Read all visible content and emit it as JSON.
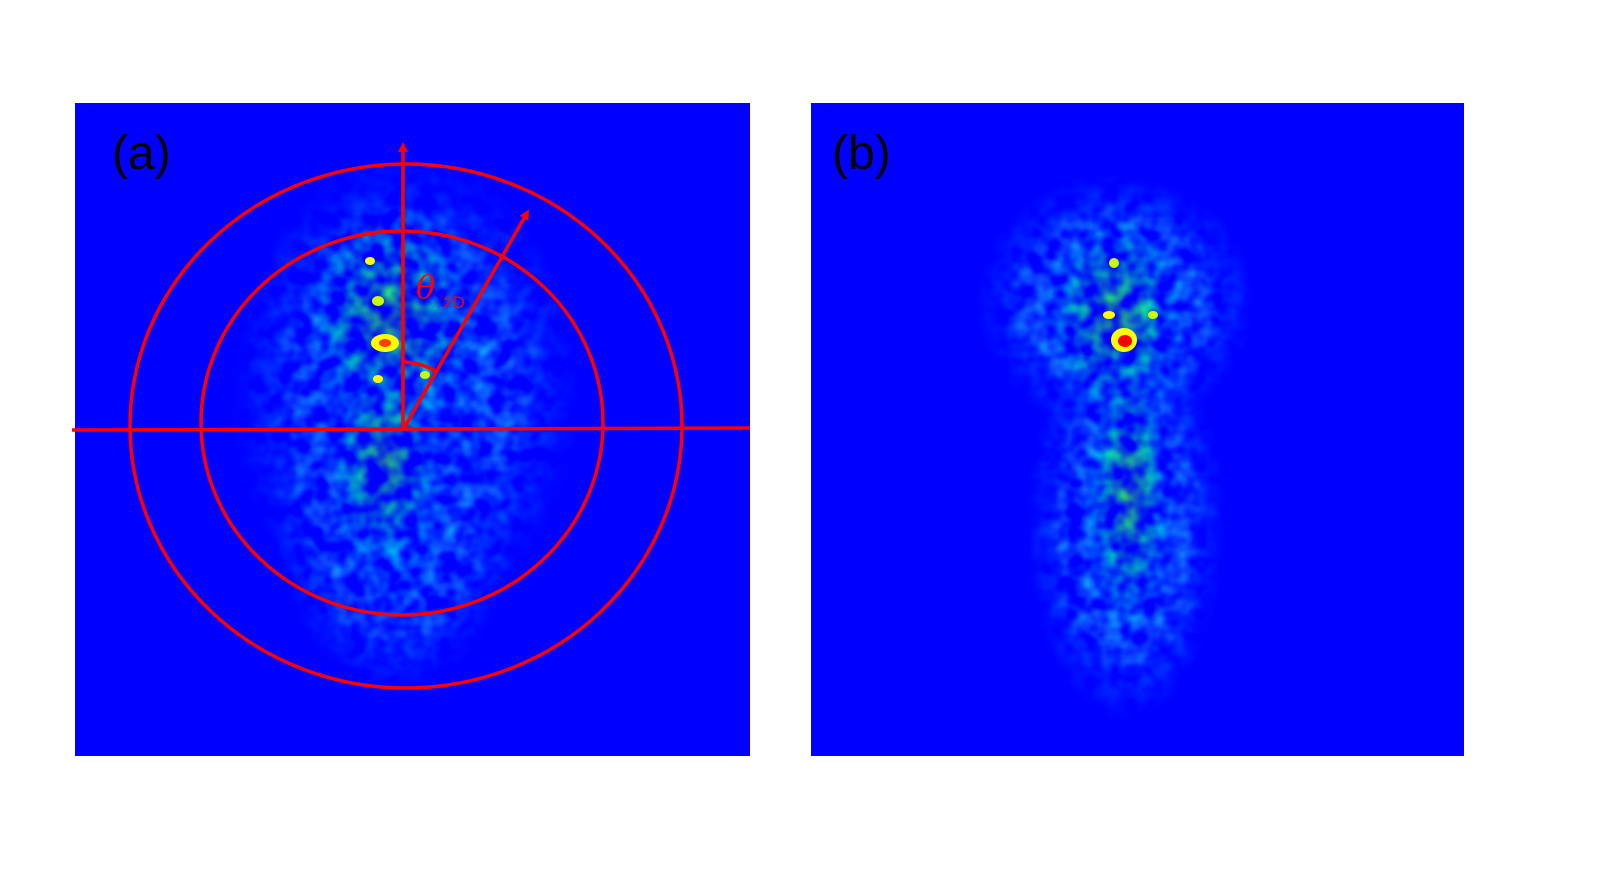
{
  "panels": [
    {
      "label": "(a)",
      "colormap": [
        "#0000ff",
        "#0080ff",
        "#00d8ff",
        "#00ff90",
        "#40ff00",
        "#ffff00",
        "#ff8000",
        "#ff0000"
      ]
    },
    {
      "label": "(b)",
      "colormap": [
        "#0000ff",
        "#0080ff",
        "#00d8ff",
        "#00ff90",
        "#40ff00",
        "#ffff00",
        "#ff8000",
        "#ff0000"
      ]
    }
  ],
  "annotation": {
    "angle_symbol": "θ",
    "angle_subscript": "2D",
    "overlay_color": "#ff0000"
  }
}
